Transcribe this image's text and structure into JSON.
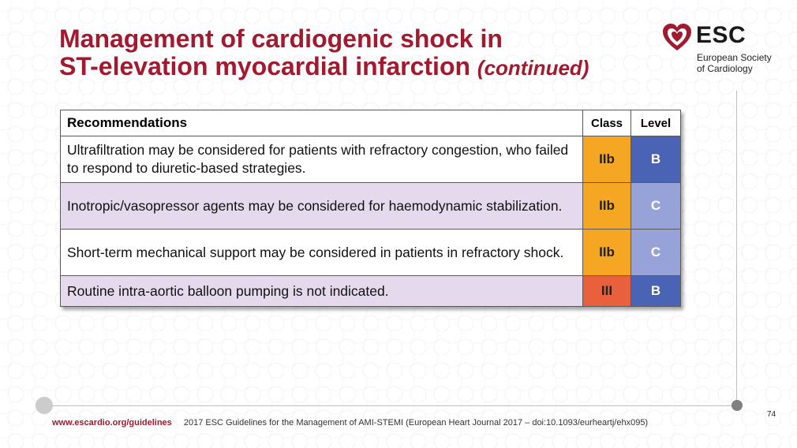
{
  "title": {
    "line1": "Management of cardiogenic shock in",
    "line2": "ST-elevation myocardial infarction",
    "continued": "(continued)"
  },
  "logo": {
    "brand": "ESC",
    "line1": "European Society",
    "line2": "of Cardiology",
    "icon": "heart-icon"
  },
  "table": {
    "headers": {
      "recommendations": "Recommendations",
      "class": "Class",
      "level": "Level"
    },
    "rows": [
      {
        "text": "Ultrafiltration may be considered for patients with refractory congestion, who failed to respond to diuretic-based strategies.",
        "class": "IIb",
        "level": "B"
      },
      {
        "text": "Inotropic/vasopressor agents may be considered for haemodynamic stabilization.",
        "class": "IIb",
        "level": "C"
      },
      {
        "text": "Short-term mechanical support may be considered in patients in refractory shock.",
        "class": "IIb",
        "level": "C"
      },
      {
        "text": "Routine intra-aortic balloon pumping is not indicated.",
        "class": "III",
        "level": "B"
      }
    ]
  },
  "colors": {
    "title": "#a11a2f",
    "class_iib": "#f5a623",
    "class_iii": "#e8603c",
    "level_b": "#4a63b5",
    "level_c": "#97a3d8",
    "row_alt": "#e5daed"
  },
  "footer": {
    "url": "www.escardio.org/guidelines",
    "citation": "2017 ESC Guidelines for the Management of AMI-STEMI (European Heart Journal 2017 – doi:10.1093/eurheartj/ehx095)",
    "page_number": "74"
  }
}
